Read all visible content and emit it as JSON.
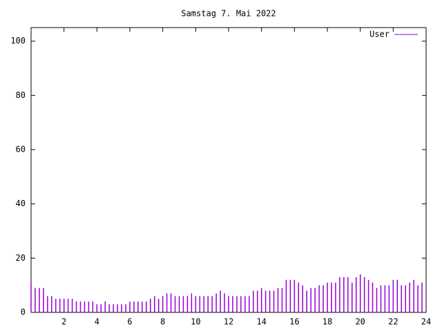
{
  "chart_data": {
    "type": "impulse",
    "title": "Samstag 7. Mai 2022",
    "x": [
      0,
      0.25,
      0.5,
      0.75,
      1,
      1.25,
      1.5,
      1.75,
      2,
      2.25,
      2.5,
      2.75,
      3,
      3.25,
      3.5,
      3.75,
      4,
      4.25,
      4.5,
      4.75,
      5,
      5.25,
      5.5,
      5.75,
      6,
      6.25,
      6.5,
      6.75,
      7,
      7.25,
      7.5,
      7.75,
      8,
      8.25,
      8.5,
      8.75,
      9,
      9.25,
      9.5,
      9.75,
      10,
      10.25,
      10.5,
      10.75,
      11,
      11.25,
      11.5,
      11.75,
      12,
      12.25,
      12.5,
      12.75,
      13,
      13.25,
      13.5,
      13.75,
      14,
      14.25,
      14.5,
      14.75,
      15,
      15.25,
      15.5,
      15.75,
      16,
      16.25,
      16.5,
      16.75,
      17,
      17.25,
      17.5,
      17.75,
      18,
      18.25,
      18.5,
      18.75,
      19,
      19.25,
      19.5,
      19.75,
      20,
      20.25,
      20.5,
      20.75,
      21,
      21.25,
      21.5,
      21.75,
      22,
      22.25,
      22.5,
      22.75,
      23,
      23.25,
      23.5,
      23.75
    ],
    "series": [
      {
        "name": "User",
        "color": "#9400d3",
        "values": [
          11,
          9,
          9,
          9,
          6,
          6,
          5,
          5,
          5,
          5,
          5,
          4,
          4,
          4,
          4,
          4,
          3,
          3,
          4,
          3,
          3,
          3,
          3,
          3,
          4,
          4,
          4,
          4,
          4,
          5,
          6,
          5,
          6,
          7,
          7,
          6,
          6,
          6,
          6,
          7,
          6,
          6,
          6,
          6,
          6,
          7,
          8,
          7,
          6,
          6,
          6,
          6,
          6,
          6,
          8,
          8,
          9,
          8,
          8,
          8,
          9,
          9,
          12,
          12,
          12,
          11,
          10,
          8,
          9,
          9,
          10,
          10,
          11,
          11,
          11,
          13,
          13,
          13,
          11,
          13,
          14,
          13,
          12,
          11,
          9,
          10,
          10,
          10,
          12,
          12,
          10,
          10,
          11,
          12,
          10,
          11
        ]
      }
    ],
    "xlim": [
      0,
      24
    ],
    "xticks": [
      2,
      4,
      6,
      8,
      10,
      12,
      14,
      16,
      18,
      20,
      22,
      24
    ],
    "ylim": [
      0,
      105
    ],
    "yticks": [
      0,
      20,
      40,
      60,
      80,
      100
    ],
    "legend": "upper right"
  }
}
